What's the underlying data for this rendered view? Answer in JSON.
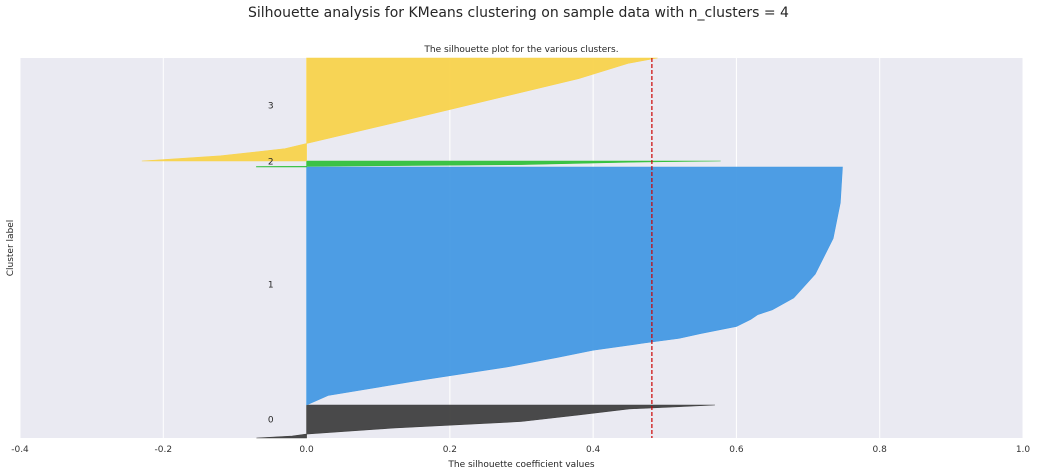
{
  "figure": {
    "suptitle": "Silhouette analysis for KMeans clustering on sample data with n_clusters = 4"
  },
  "chart_data": {
    "type": "area",
    "title": "The silhouette plot for the various clusters.",
    "xlabel": "The silhouette coefficient values",
    "ylabel": "Cluster label",
    "xlim": [
      -0.4,
      1.0
    ],
    "xticks": [
      "-0.4",
      "-0.2",
      "0.0",
      "0.2",
      "0.4",
      "0.6",
      "0.8",
      "1.0"
    ],
    "yticks": [],
    "grid": true,
    "background": "#EAEAF2",
    "average_silhouette_score": 0.482,
    "average_line_color": "#CC0000",
    "clusters": [
      {
        "label": "0",
        "color": "#404040",
        "profile": [
          [
            0.0,
            -0.07
          ],
          [
            0.06,
            -0.02
          ],
          [
            0.12,
            0.0
          ],
          [
            0.3,
            0.12
          ],
          [
            0.5,
            0.3
          ],
          [
            0.7,
            0.38
          ],
          [
            0.88,
            0.45
          ],
          [
            0.95,
            0.52
          ],
          [
            1.0,
            0.57
          ]
        ]
      },
      {
        "label": "1",
        "color": "#4499E3",
        "profile": [
          [
            0.0,
            0.0
          ],
          [
            0.04,
            0.03
          ],
          [
            0.1,
            0.15
          ],
          [
            0.16,
            0.28
          ],
          [
            0.2,
            0.35
          ],
          [
            0.23,
            0.4
          ],
          [
            0.26,
            0.47
          ],
          [
            0.28,
            0.52
          ],
          [
            0.3,
            0.55
          ],
          [
            0.33,
            0.6
          ],
          [
            0.36,
            0.62
          ],
          [
            0.38,
            0.63
          ],
          [
            0.4,
            0.65
          ],
          [
            0.45,
            0.68
          ],
          [
            0.55,
            0.71
          ],
          [
            0.7,
            0.735
          ],
          [
            0.85,
            0.745
          ],
          [
            1.0,
            0.748
          ]
        ]
      },
      {
        "label": "2",
        "color": "#33C03C",
        "profile": [
          [
            0.0,
            -0.07
          ],
          [
            0.08,
            -0.07
          ],
          [
            0.12,
            0.0
          ],
          [
            0.4,
            0.3
          ],
          [
            0.8,
            0.45
          ],
          [
            1.0,
            0.578
          ]
        ]
      },
      {
        "label": "3",
        "color": "#F8D34C",
        "profile": [
          [
            0.0,
            -0.23
          ],
          [
            0.05,
            -0.12
          ],
          [
            0.12,
            -0.03
          ],
          [
            0.17,
            0.0
          ],
          [
            0.4,
            0.14
          ],
          [
            0.6,
            0.26
          ],
          [
            0.8,
            0.38
          ],
          [
            0.95,
            0.45
          ],
          [
            1.0,
            0.49
          ]
        ]
      }
    ]
  }
}
